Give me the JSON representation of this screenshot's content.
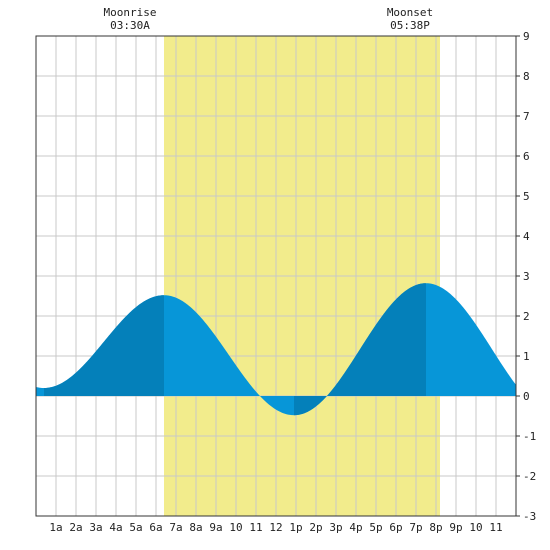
{
  "moon": {
    "rise_label": "Moonrise",
    "rise_time": "03:30A",
    "set_label": "Moonset",
    "set_time": "05:38P"
  },
  "colors": {
    "daylight": "#f2ec8c",
    "tide_fill": "#0796d8",
    "tide_dark": "#0480ba",
    "grid": "#c8c8c8",
    "frame": "#333333"
  },
  "chart_data": {
    "type": "area",
    "xlabel": "",
    "ylabel": "",
    "xlim": [
      0,
      24
    ],
    "ylim": [
      -3,
      9
    ],
    "x_tick_labels": [
      {
        "x": 1,
        "label": "1a"
      },
      {
        "x": 2,
        "label": "2a"
      },
      {
        "x": 3,
        "label": "3a"
      },
      {
        "x": 4,
        "label": "4a"
      },
      {
        "x": 5,
        "label": "5a"
      },
      {
        "x": 6,
        "label": "6a"
      },
      {
        "x": 7,
        "label": "7a"
      },
      {
        "x": 8,
        "label": "8a"
      },
      {
        "x": 9,
        "label": "9a"
      },
      {
        "x": 10,
        "label": "10"
      },
      {
        "x": 11,
        "label": "11"
      },
      {
        "x": 12,
        "label": "12"
      },
      {
        "x": 13,
        "label": "1p"
      },
      {
        "x": 14,
        "label": "2p"
      },
      {
        "x": 15,
        "label": "3p"
      },
      {
        "x": 16,
        "label": "4p"
      },
      {
        "x": 17,
        "label": "5p"
      },
      {
        "x": 18,
        "label": "6p"
      },
      {
        "x": 19,
        "label": "7p"
      },
      {
        "x": 20,
        "label": "8p"
      },
      {
        "x": 21,
        "label": "9p"
      },
      {
        "x": 22,
        "label": "10"
      },
      {
        "x": 23,
        "label": "11"
      }
    ],
    "y_ticks": [
      -3,
      -2,
      -1,
      0,
      1,
      2,
      3,
      4,
      5,
      6,
      7,
      8,
      9
    ],
    "daylight_hours": [
      6.4,
      20.2
    ],
    "extremes": [
      {
        "x": 0.4,
        "y": 0.2,
        "type": "low"
      },
      {
        "x": 6.4,
        "y": 2.52,
        "type": "high"
      },
      {
        "x": 12.9,
        "y": -0.48,
        "type": "low"
      },
      {
        "x": 19.5,
        "y": 2.82,
        "type": "high"
      },
      {
        "x": 24,
        "y": 0.55,
        "type": "falling"
      }
    ],
    "dark_bands": [
      [
        0.4,
        6.4
      ],
      [
        12.9,
        19.5
      ]
    ],
    "grid": true
  }
}
